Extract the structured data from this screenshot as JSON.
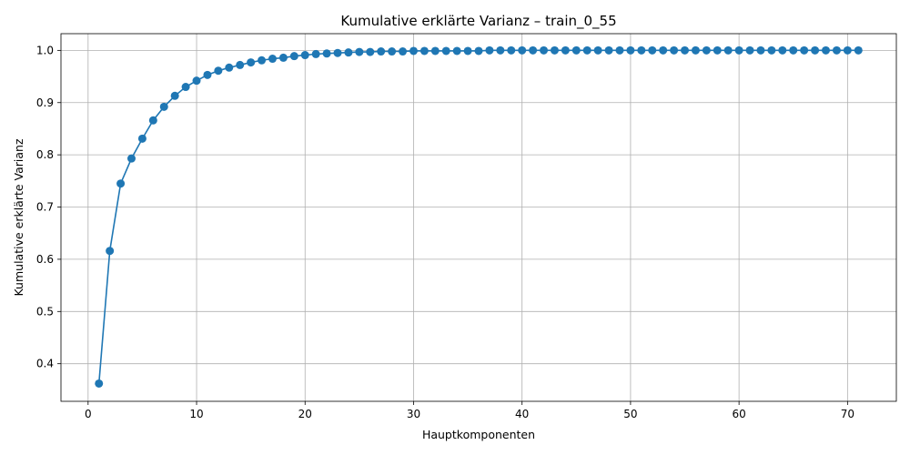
{
  "chart_data": {
    "type": "line",
    "title": "Kumulative erklärte Varianz – train_0_55",
    "xlabel": "Hauptkomponenten",
    "ylabel": "Kumulative erklärte Varianz",
    "xlim": [
      -2.5,
      74.5
    ],
    "ylim": [
      0.328,
      1.032
    ],
    "xticks": [
      0,
      10,
      20,
      30,
      40,
      50,
      60,
      70
    ],
    "yticks": [
      0.4,
      0.5,
      0.6,
      0.7,
      0.8,
      0.9,
      1.0
    ],
    "xtick_labels": [
      "0",
      "10",
      "20",
      "30",
      "40",
      "50",
      "60",
      "70"
    ],
    "ytick_labels": [
      "0.4",
      "0.5",
      "0.6",
      "0.7",
      "0.8",
      "0.9",
      "1.0"
    ],
    "grid": true,
    "color": "#1f77b4",
    "marker": "circle",
    "series": [
      {
        "x": [
          1,
          2,
          3,
          4,
          5,
          6,
          7,
          8,
          9,
          10,
          11,
          12,
          13,
          14,
          15,
          16,
          17,
          18,
          19,
          20,
          21,
          22,
          23,
          24,
          25,
          26,
          27,
          28,
          29,
          30,
          31,
          32,
          33,
          34,
          35,
          36,
          37,
          38,
          39,
          40,
          41,
          42,
          43,
          44,
          45,
          46,
          47,
          48,
          49,
          50,
          51,
          52,
          53,
          54,
          55,
          56,
          57,
          58,
          59,
          60,
          61,
          62,
          63,
          64,
          65,
          66,
          67,
          68,
          69,
          70,
          71
        ],
        "values": [
          0.362,
          0.616,
          0.745,
          0.793,
          0.831,
          0.866,
          0.892,
          0.913,
          0.93,
          0.942,
          0.953,
          0.961,
          0.967,
          0.972,
          0.977,
          0.981,
          0.984,
          0.986,
          0.989,
          0.991,
          0.993,
          0.994,
          0.995,
          0.996,
          0.997,
          0.997,
          0.998,
          0.998,
          0.998,
          0.999,
          0.999,
          0.999,
          0.999,
          0.999,
          0.999,
          0.999,
          1.0,
          1.0,
          1.0,
          1.0,
          1.0,
          1.0,
          1.0,
          1.0,
          1.0,
          1.0,
          1.0,
          1.0,
          1.0,
          1.0,
          1.0,
          1.0,
          1.0,
          1.0,
          1.0,
          1.0,
          1.0,
          1.0,
          1.0,
          1.0,
          1.0,
          1.0,
          1.0,
          1.0,
          1.0,
          1.0,
          1.0,
          1.0,
          1.0,
          1.0,
          1.0
        ]
      }
    ]
  }
}
